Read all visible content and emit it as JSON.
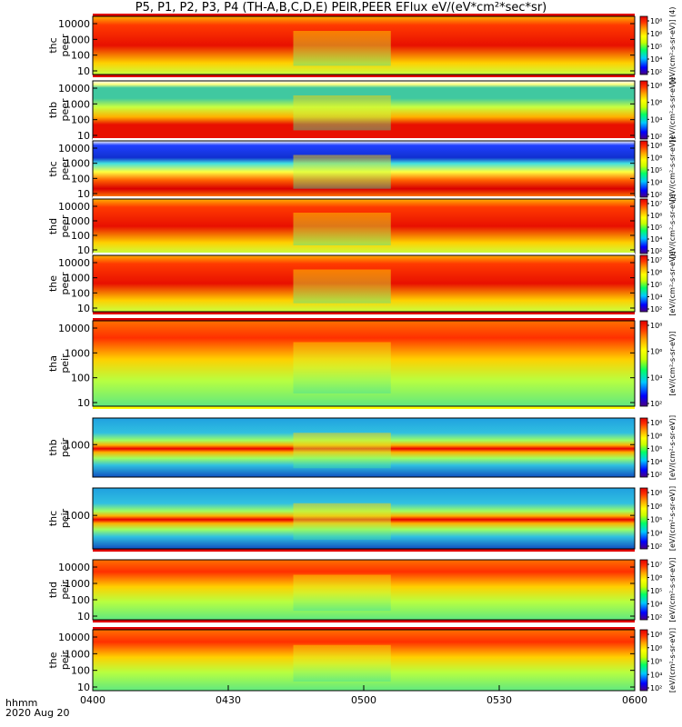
{
  "title": "P5, P1, P2, P3, P4 (TH-A,B,C,D,E) PEIR,PEER EFlux eV/(eV*cm²*sec*sr)",
  "footer": {
    "label": "hhmm",
    "date": "2020 Aug 20"
  },
  "chart_data": {
    "type": "heatmap",
    "x_ticks": [
      "0400",
      "0430",
      "0500",
      "0530",
      "0600"
    ],
    "x_range": [
      "04:00",
      "06:00"
    ],
    "colorbar_unit_label": "[eV/(cm²-s-sr-eV)]",
    "colormap": [
      "#4b0082",
      "#0000ff",
      "#00c8ff",
      "#00ff66",
      "#c8ff00",
      "#ffff00",
      "#ffa500",
      "#ff3300",
      "#e00000"
    ],
    "panels": [
      {
        "name": "thc_peer",
        "y_label_1": "thc",
        "y_label_2": "peer",
        "y_ticks": [
          "10",
          "100",
          "1000",
          "10000"
        ],
        "cbar_ticks": [
          "10²",
          "10⁴",
          "10⁵",
          "10⁶",
          "10⁸"
        ],
        "cbar_unit": "[eV/(cm²-s-sr-eV)] (4)",
        "bar_top": "red",
        "bar_bottom": "red"
      },
      {
        "name": "thb_peer",
        "y_label_1": "thb",
        "y_label_2": "peer",
        "y_ticks": [
          "10",
          "100",
          "1000",
          "10000"
        ],
        "cbar_ticks": [
          "10²",
          "10⁴",
          "10⁶",
          "10⁸"
        ],
        "cbar_unit": "[eV/(cm²-s-sr-eV)]",
        "bar_top": "white",
        "bar_bottom": "white"
      },
      {
        "name": "thc_peer_2",
        "y_label_1": "thc",
        "y_label_2": "peer",
        "y_ticks": [
          "10",
          "100",
          "1000",
          "10000"
        ],
        "cbar_ticks": [
          "10²",
          "10⁴",
          "10⁵",
          "10⁶",
          "10⁸"
        ],
        "cbar_unit": "[eV/(cm²-s-sr-eV)]",
        "bar_top": "white",
        "bar_bottom": "white"
      },
      {
        "name": "thd_peer",
        "y_label_1": "thd",
        "y_label_2": "peer",
        "y_ticks": [
          "10",
          "100",
          "1000",
          "10000"
        ],
        "cbar_ticks": [
          "10²",
          "10⁴",
          "10⁵",
          "10⁶",
          "10⁷"
        ],
        "cbar_unit": "[eV/(cm²-s-sr-eV)]",
        "bar_top": "white",
        "bar_bottom": "white"
      },
      {
        "name": "the_peer",
        "y_label_1": "the",
        "y_label_2": "peer",
        "y_ticks": [
          "10",
          "100",
          "1000",
          "10000"
        ],
        "cbar_ticks": [
          "10²",
          "10⁴",
          "10⁵",
          "10⁶",
          "10⁷"
        ],
        "cbar_unit": "[eV/(cm²-s-sr-eV)]",
        "bar_top": "white",
        "bar_bottom": "red"
      },
      {
        "name": "tha_peir",
        "y_label_1": "tha",
        "y_label_2": "peir",
        "y_ticks": [
          "10",
          "100",
          "1000",
          "10000"
        ],
        "cbar_ticks": [
          "10²",
          "10⁴",
          "10⁶",
          "10⁸"
        ],
        "cbar_unit": "[eV/(cm²-s-sr-eV)]",
        "bar_top": "red",
        "bar_bottom": "yellow"
      },
      {
        "name": "thb_peir",
        "y_label_1": "thb",
        "y_label_2": "peir",
        "y_ticks": [
          "1000"
        ],
        "cbar_ticks": [
          "10²",
          "10⁴",
          "10⁵",
          "10⁶",
          "10⁸"
        ],
        "cbar_unit": "[eV/(cm²-s-sr-eV)]",
        "bar_top": "white",
        "bar_bottom": "white"
      },
      {
        "name": "thc_peir",
        "y_label_1": "thc",
        "y_label_2": "peir",
        "y_ticks": [
          "1000"
        ],
        "cbar_ticks": [
          "10²",
          "10⁴",
          "10⁵",
          "10⁶",
          "10⁸"
        ],
        "cbar_unit": "[eV/(cm²-s-sr-eV)]",
        "bar_top": "white",
        "bar_bottom": "red"
      },
      {
        "name": "thd_peir",
        "y_label_1": "thd",
        "y_label_2": "peir",
        "y_ticks": [
          "10",
          "100",
          "1000",
          "10000"
        ],
        "cbar_ticks": [
          "10²",
          "10⁴",
          "10⁵",
          "10⁶",
          "10⁷"
        ],
        "cbar_unit": "[eV/(cm²-s-sr-eV)]",
        "bar_top": "white",
        "bar_bottom": "red"
      },
      {
        "name": "the_peir",
        "y_label_1": "the",
        "y_label_2": "peir",
        "y_ticks": [
          "10",
          "100",
          "1000",
          "10000"
        ],
        "cbar_ticks": [
          "10²",
          "10⁴",
          "10⁵",
          "10⁶",
          "10⁸"
        ],
        "cbar_unit": "[eV/(cm²-s-sr-eV)]",
        "bar_top": "red",
        "bar_bottom": "white"
      }
    ]
  }
}
